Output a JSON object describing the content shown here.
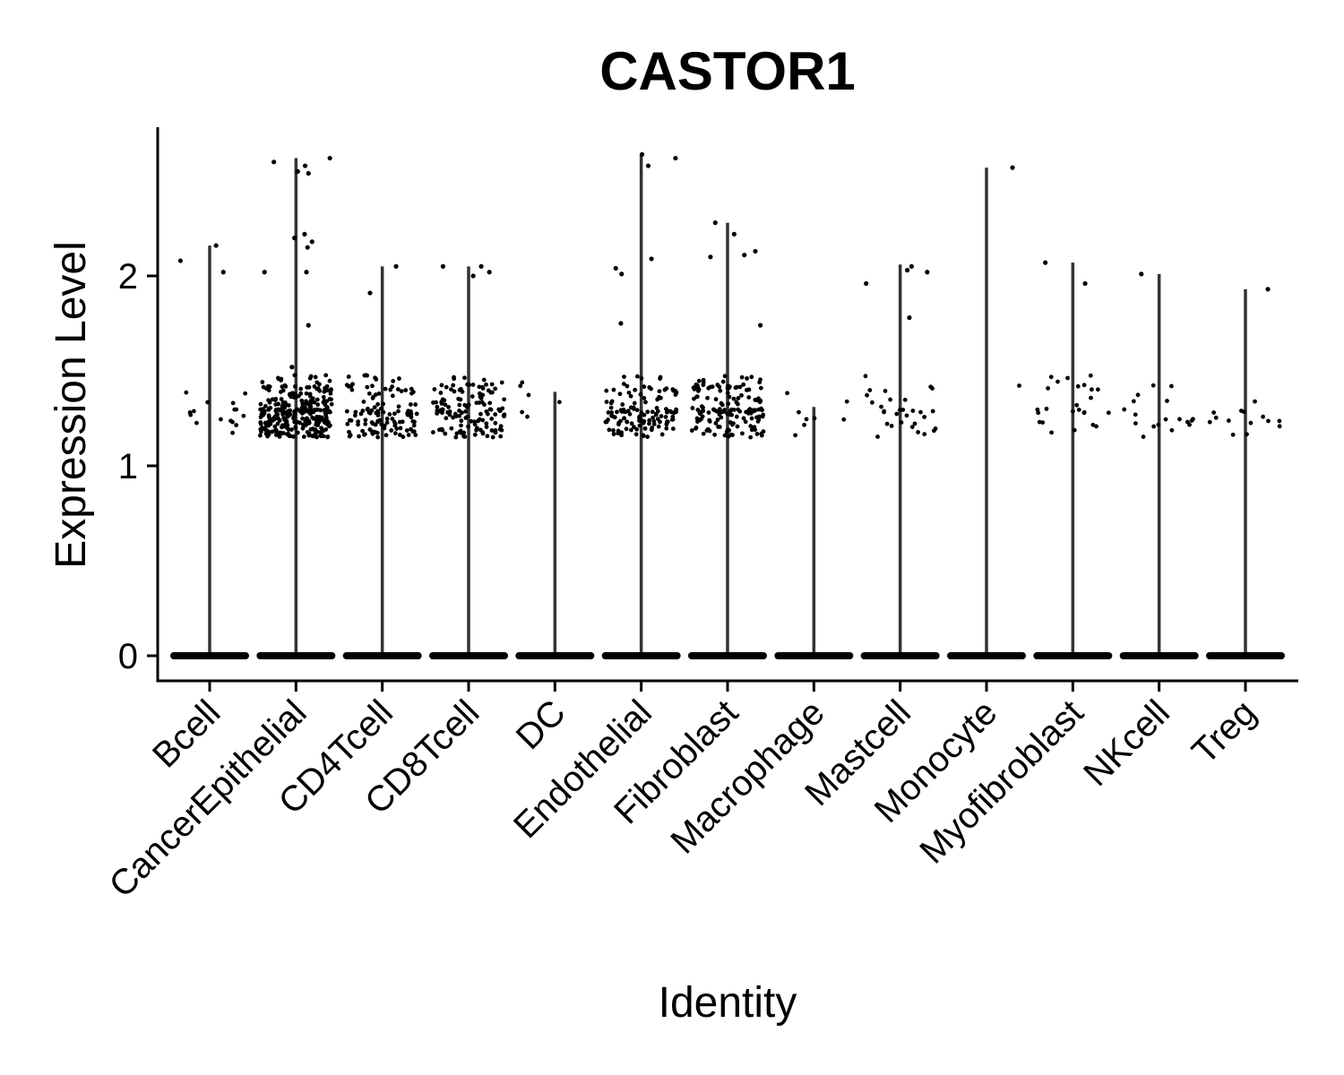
{
  "chart_data": {
    "type": "violin",
    "title": "CASTOR1",
    "xlabel": "Identity",
    "ylabel": "Expression Level",
    "ylim": [
      -0.13,
      2.78
    ],
    "yticks": [
      0,
      1,
      2
    ],
    "categories": [
      "Bcell",
      "CancerEpithelial",
      "CD4Tcell",
      "CD8Tcell",
      "DC",
      "Endothelial",
      "Fibroblast",
      "Macrophage",
      "Mastcell",
      "Monocyte",
      "Myofibroblast",
      "NKcell",
      "Treg"
    ],
    "max_values": [
      2.16,
      2.62,
      2.05,
      2.05,
      1.39,
      2.64,
      2.28,
      1.31,
      2.06,
      2.57,
      2.07,
      2.01,
      1.93
    ],
    "counts_nonzero_approx": [
      16,
      300,
      120,
      130,
      6,
      130,
      150,
      8,
      30,
      1,
      25,
      18,
      14
    ],
    "high_points": [
      [
        2.16,
        2.08,
        2.02
      ],
      [
        2.62,
        2.6,
        2.58,
        2.55,
        2.54,
        2.22,
        2.2,
        2.18,
        2.15,
        2.02,
        2.02,
        1.74,
        1.52
      ],
      [
        2.05,
        1.91
      ],
      [
        2.05,
        2.02,
        2.0,
        2.05
      ],
      [],
      [
        2.64,
        2.62,
        2.58,
        2.09,
        2.04,
        2.01,
        1.75
      ],
      [
        2.28,
        2.22,
        2.13,
        2.1,
        2.11,
        1.74
      ],
      [],
      [
        2.05,
        2.03,
        2.02,
        1.96,
        1.78
      ],
      [
        2.57
      ],
      [
        2.07,
        1.96
      ],
      [
        2.01
      ],
      [
        1.93
      ]
    ],
    "grid": false,
    "legend": "none"
  }
}
